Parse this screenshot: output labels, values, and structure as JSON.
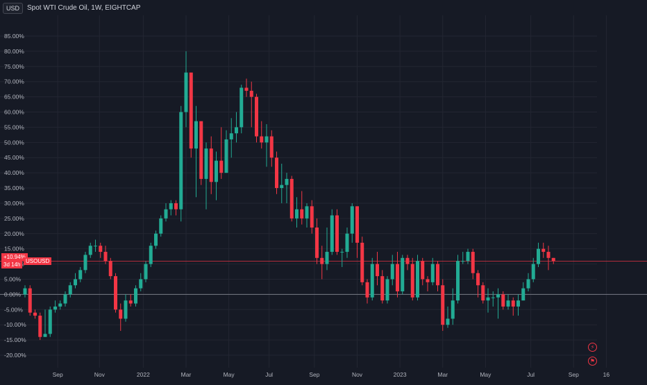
{
  "header": {
    "currency": "USD",
    "title": "Spot WTI Crude Oil, 1W, EIGHTCAP"
  },
  "price_badge": {
    "change": "+10.94%",
    "countdown": "3d 14h",
    "symbol": "USOUSD"
  },
  "colors": {
    "up": "#22ab94",
    "down": "#f23645",
    "background": "#161a25",
    "grid": "#232632",
    "text": "#b2b5be"
  },
  "icons": {
    "event_1": "lightning-icon",
    "event_2": "flag-icon"
  },
  "chart_data": {
    "type": "candlestick",
    "title": "Spot WTI Crude Oil, 1W, EIGHTCAP",
    "ylim": [
      -22,
      86
    ],
    "y_ticks": [
      85,
      80,
      75,
      70,
      65,
      60,
      55,
      50,
      45,
      40,
      35,
      30,
      25,
      20,
      15,
      10,
      5,
      0,
      -5,
      -10,
      -15,
      -20
    ],
    "y_tick_labels": [
      "85.00%",
      "80.00%",
      "75.00%",
      "70.00%",
      "65.00%",
      "60.00%",
      "55.00%",
      "50.00%",
      "45.00%",
      "40.00%",
      "35.00%",
      "30.00%",
      "25.00%",
      "20.00%",
      "15.00%",
      "10.00%",
      "5.00%",
      "0.00%",
      "-5.00%",
      "-10.00%",
      "-15.00%",
      "-20.00%"
    ],
    "x_ticks": [
      {
        "label": "Sep",
        "index": 6.5
      },
      {
        "label": "Nov",
        "index": 14.8
      },
      {
        "label": "2022",
        "index": 23.5
      },
      {
        "label": "Mar",
        "index": 32
      },
      {
        "label": "May",
        "index": 40.5
      },
      {
        "label": "Jul",
        "index": 48.5
      },
      {
        "label": "Sep",
        "index": 57.5
      },
      {
        "label": "Nov",
        "index": 66
      },
      {
        "label": "2023",
        "index": 74.5
      },
      {
        "label": "Mar",
        "index": 83
      },
      {
        "label": "May",
        "index": 91.5
      },
      {
        "label": "Jul",
        "index": 100.5
      },
      {
        "label": "Sep",
        "index": 109
      },
      {
        "label": "16",
        "index": 115.5
      }
    ],
    "reference_lines": {
      "zero": 0,
      "last_close": 10.94
    },
    "candles": [
      [
        0,
        2,
        3,
        -1
      ],
      [
        2,
        -6,
        3,
        -7
      ],
      [
        -6,
        -7,
        -5,
        -8
      ],
      [
        -7,
        -14,
        -6,
        -15
      ],
      [
        -14,
        -13,
        -5,
        -14
      ],
      [
        -13,
        -5,
        -4,
        -14
      ],
      [
        -5,
        -4,
        -2,
        -6
      ],
      [
        -4,
        -3,
        -2,
        -5
      ],
      [
        -3,
        0,
        1,
        -4
      ],
      [
        0,
        3,
        4,
        -1
      ],
      [
        3,
        5,
        7,
        2
      ],
      [
        5,
        8,
        9,
        4
      ],
      [
        8,
        13,
        14,
        7
      ],
      [
        13,
        16,
        17,
        12
      ],
      [
        16,
        16,
        18,
        14
      ],
      [
        16,
        14,
        17,
        12
      ],
      [
        14,
        11,
        16,
        10
      ],
      [
        11,
        6,
        12,
        5
      ],
      [
        6,
        -5,
        7,
        -6
      ],
      [
        -5,
        -8,
        -3,
        -12
      ],
      [
        -8,
        -2,
        0,
        -9
      ],
      [
        -2,
        -3,
        0,
        -4
      ],
      [
        -3,
        2,
        3,
        -4
      ],
      [
        2,
        5,
        7,
        1
      ],
      [
        5,
        10,
        11,
        4
      ],
      [
        10,
        16,
        17,
        9
      ],
      [
        16,
        20,
        21,
        15
      ],
      [
        20,
        25,
        26,
        19
      ],
      [
        25,
        28,
        30,
        24
      ],
      [
        28,
        30,
        31,
        26
      ],
      [
        30,
        28,
        31,
        26
      ],
      [
        28,
        60,
        62,
        24
      ],
      [
        60,
        73,
        80,
        55
      ],
      [
        73,
        48,
        50,
        45
      ],
      [
        48,
        57,
        62,
        32
      ],
      [
        57,
        38,
        42,
        36
      ],
      [
        38,
        48,
        50,
        28
      ],
      [
        48,
        37,
        52,
        33
      ],
      [
        37,
        44,
        47,
        31
      ],
      [
        44,
        40,
        55,
        38
      ],
      [
        40,
        51,
        54,
        40
      ],
      [
        51,
        53,
        58,
        45
      ],
      [
        53,
        55,
        60,
        50
      ],
      [
        55,
        68,
        69,
        53
      ],
      [
        68,
        67,
        71,
        65
      ],
      [
        67,
        65,
        70,
        55
      ],
      [
        65,
        52,
        66,
        50
      ],
      [
        52,
        50,
        57,
        48
      ],
      [
        50,
        52,
        56,
        42
      ],
      [
        52,
        45,
        54,
        42
      ],
      [
        45,
        35,
        47,
        33
      ],
      [
        35,
        36,
        43,
        30
      ],
      [
        36,
        38,
        40,
        30
      ],
      [
        38,
        25,
        39,
        24
      ],
      [
        25,
        28,
        32,
        22
      ],
      [
        28,
        25,
        34,
        23
      ],
      [
        25,
        29,
        30,
        22
      ],
      [
        29,
        22,
        31,
        20
      ],
      [
        22,
        12,
        25,
        10
      ],
      [
        12,
        10,
        16,
        5
      ],
      [
        10,
        14,
        22,
        8
      ],
      [
        14,
        26,
        28,
        13
      ],
      [
        26,
        14,
        28,
        13
      ],
      [
        14,
        14,
        15,
        9
      ],
      [
        14,
        20,
        22,
        12
      ],
      [
        20,
        29,
        30,
        17
      ],
      [
        29,
        17,
        29,
        12
      ],
      [
        17,
        4,
        19,
        3
      ],
      [
        4,
        -1,
        5,
        -3
      ],
      [
        -1,
        10,
        12,
        -2
      ],
      [
        10,
        6,
        14,
        3
      ],
      [
        6,
        -2,
        8,
        -3
      ],
      [
        -2,
        5,
        6,
        -3
      ],
      [
        5,
        10,
        13,
        3
      ],
      [
        10,
        1,
        14,
        -1
      ],
      [
        1,
        12,
        13,
        0
      ],
      [
        12,
        10,
        13,
        8
      ],
      [
        10,
        -1,
        12,
        -2
      ],
      [
        -1,
        11,
        13,
        -2
      ],
      [
        11,
        5,
        12,
        3
      ],
      [
        5,
        4,
        6,
        1
      ],
      [
        4,
        10,
        12,
        3
      ],
      [
        10,
        3,
        11,
        1
      ],
      [
        3,
        -10,
        5,
        -12
      ],
      [
        -10,
        -8,
        -4,
        -11
      ],
      [
        -8,
        -2,
        2,
        -10
      ],
      [
        -2,
        11,
        13,
        -3
      ],
      [
        11,
        11,
        14,
        10
      ],
      [
        11,
        14,
        15,
        10
      ],
      [
        14,
        7,
        15,
        5
      ],
      [
        7,
        3,
        8,
        -1
      ],
      [
        3,
        -2,
        4,
        -3
      ],
      [
        -2,
        -1,
        2,
        -6
      ],
      [
        -1,
        -1,
        1,
        -4
      ],
      [
        -1,
        0,
        2,
        -8
      ],
      [
        0,
        -4,
        1,
        -5
      ],
      [
        -4,
        -2,
        0,
        -5
      ],
      [
        -2,
        -4,
        -1,
        -7
      ],
      [
        -4,
        -2,
        0,
        -7
      ],
      [
        -2,
        2,
        4,
        -2
      ],
      [
        2,
        5,
        7,
        1
      ],
      [
        5,
        10,
        12,
        4
      ],
      [
        10,
        15,
        17,
        9
      ],
      [
        15,
        14,
        17,
        12
      ],
      [
        14,
        12,
        16,
        8
      ],
      [
        12,
        11,
        12,
        10
      ]
    ]
  }
}
